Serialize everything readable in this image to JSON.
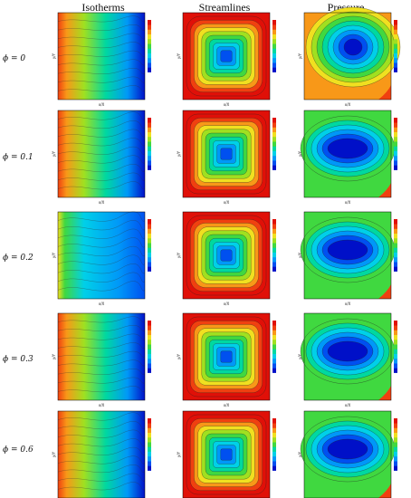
{
  "columns": [
    "Isotherms",
    "Streamlines",
    "Pressure"
  ],
  "rows": [
    {
      "label": "ϕ = 0"
    },
    {
      "label": "ϕ = 0.1"
    },
    {
      "label": "ϕ = 0.2"
    },
    {
      "label": "ϕ = 0.3"
    },
    {
      "label": "ϕ = 0.6"
    }
  ],
  "axes": {
    "xlabel": "x/X",
    "ylabel": "y/Y"
  },
  "colormap": [
    "#0010c8",
    "#0050f0",
    "#0098f8",
    "#00d0e8",
    "#00d8a0",
    "#40d840",
    "#a0e020",
    "#f0e020",
    "#f89818",
    "#f04010",
    "#e01008"
  ],
  "panels": [
    {
      "type": "isotherms"
    },
    {
      "type": "streamlines"
    },
    {
      "type": "pressure"
    }
  ]
}
